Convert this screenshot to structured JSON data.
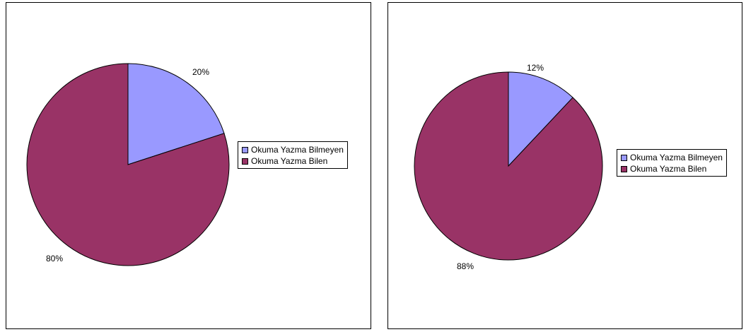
{
  "colors": {
    "okuma_yazma_bilmeyen": "#9999ff",
    "okuma_yazma_bilen": "#993366"
  },
  "chart_data": [
    {
      "type": "pie",
      "categories": [
        "Okuma Yazma Bilmeyen",
        "Okuma Yazma Bilen"
      ],
      "values": [
        20,
        80
      ],
      "labels": [
        "20%",
        "80%"
      ],
      "legend": "right"
    },
    {
      "type": "pie",
      "categories": [
        "Okuma Yazma Bilmeyen",
        "Okuma Yazma Bilen"
      ],
      "values": [
        12,
        88
      ],
      "labels": [
        "12%",
        "88%"
      ],
      "legend": "right"
    }
  ]
}
